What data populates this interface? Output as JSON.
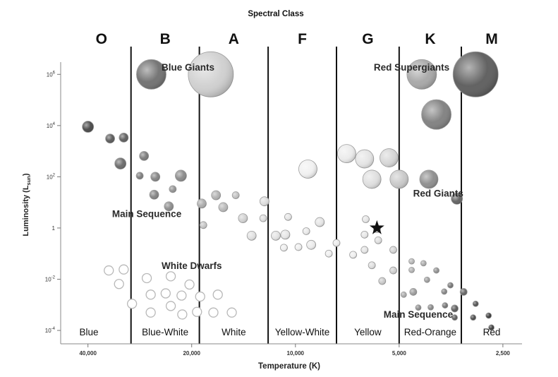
{
  "chart_data": {
    "type": "scatter",
    "title": "Spectral Class",
    "xlabel": "Temperature (K)",
    "ylabel": "Luminosity (L",
    "ylabel_sub": "sun",
    "ylabel_close": ")",
    "x_scale": "log",
    "x_reversed": true,
    "xlim": [
      48000,
      2200
    ],
    "y_scale": "log",
    "ylim": [
      3e-05,
      3000000
    ],
    "x_ticks": [
      {
        "value": 40000,
        "label": "40,000"
      },
      {
        "value": 20000,
        "label": "20,000"
      },
      {
        "value": 10000,
        "label": "10,000"
      },
      {
        "value": 5000,
        "label": "5,000"
      },
      {
        "value": 2500,
        "label": "2,500"
      }
    ],
    "y_ticks": [
      {
        "value": 1000000,
        "base": "10",
        "exp": "6"
      },
      {
        "value": 10000,
        "base": "10",
        "exp": "4"
      },
      {
        "value": 100,
        "base": "10",
        "exp": "2"
      },
      {
        "value": 1,
        "base": "1",
        "exp": ""
      },
      {
        "value": 0.01,
        "base": "10",
        "exp": "-2"
      },
      {
        "value": 0.0001,
        "base": "10",
        "exp": "-4"
      }
    ],
    "spectral_classes": [
      {
        "letter": "O",
        "color_name": "Blue",
        "t_hot": 48000,
        "t_cool": 30000
      },
      {
        "letter": "B",
        "color_name": "Blue-White",
        "t_hot": 30000,
        "t_cool": 19000
      },
      {
        "letter": "A",
        "color_name": "White",
        "t_hot": 19000,
        "t_cool": 12000
      },
      {
        "letter": "F",
        "color_name": "Yellow-White",
        "t_hot": 12000,
        "t_cool": 7600
      },
      {
        "letter": "G",
        "color_name": "Yellow",
        "t_hot": 7600,
        "t_cool": 5000
      },
      {
        "letter": "K",
        "color_name": "Red-Orange",
        "t_hot": 5000,
        "t_cool": 3300
      },
      {
        "letter": "M",
        "color_name": "Red",
        "t_hot": 3300,
        "t_cool": 2200
      }
    ],
    "region_labels": [
      {
        "text": "Blue Giants",
        "temp": 20500,
        "lum": 1400000
      },
      {
        "text": "Red Supergiants",
        "temp": 4600,
        "lum": 1400000
      },
      {
        "text": "Main Sequence",
        "temp": 27000,
        "lum": 2.7
      },
      {
        "text": "Red Giants",
        "temp": 3850,
        "lum": 17
      },
      {
        "text": "White Dwarfs",
        "temp": 20000,
        "lum": 0.025
      },
      {
        "text": "Main Sequence",
        "temp": 4400,
        "lum": 0.00031
      }
    ],
    "sun": {
      "temp": 5800,
      "lum": 1
    },
    "series": [
      {
        "group": "main_sequence",
        "points": [
          {
            "temp": 40000,
            "lum": 9000,
            "size": "s",
            "tone": "#444444"
          },
          {
            "temp": 34500,
            "lum": 3100,
            "size": "xs",
            "tone": "#555555"
          },
          {
            "temp": 31500,
            "lum": 3400,
            "size": "xs",
            "tone": "#5a5a5a"
          },
          {
            "temp": 32200,
            "lum": 330,
            "size": "s",
            "tone": "#666666"
          },
          {
            "temp": 27500,
            "lum": 650,
            "size": "xs",
            "tone": "#777777"
          },
          {
            "temp": 28300,
            "lum": 110,
            "size": "xxs",
            "tone": "#7a7a7a"
          },
          {
            "temp": 25500,
            "lum": 100,
            "size": "xs",
            "tone": "#808080"
          },
          {
            "temp": 21500,
            "lum": 110,
            "size": "s",
            "tone": "#888888"
          },
          {
            "temp": 25700,
            "lum": 20,
            "size": "xs",
            "tone": "#808080"
          },
          {
            "temp": 22700,
            "lum": 33,
            "size": "xxs",
            "tone": "#909090"
          },
          {
            "temp": 23300,
            "lum": 7,
            "size": "xs",
            "tone": "#8a8a8a"
          },
          {
            "temp": 18700,
            "lum": 9,
            "size": "xs",
            "tone": "#aaaaaa"
          },
          {
            "temp": 17000,
            "lum": 19,
            "size": "xs",
            "tone": "#b0b0b0"
          },
          {
            "temp": 16200,
            "lum": 6.5,
            "size": "xs",
            "tone": "#b8b8b8"
          },
          {
            "temp": 14900,
            "lum": 19,
            "size": "xxs",
            "tone": "#c0c0c0"
          },
          {
            "temp": 18500,
            "lum": 1.3,
            "size": "xxs",
            "tone": "#c4c4c4"
          },
          {
            "temp": 14200,
            "lum": 2.4,
            "size": "xs",
            "tone": "#d0d0d0"
          },
          {
            "temp": 12300,
            "lum": 11,
            "size": "xs",
            "tone": "#dddddd"
          },
          {
            "temp": 12400,
            "lum": 2.4,
            "size": "xxs",
            "tone": "#dddddd"
          },
          {
            "temp": 13400,
            "lum": 0.5,
            "size": "xs",
            "tone": "#e0e0e0"
          },
          {
            "temp": 11400,
            "lum": 0.5,
            "size": "xs",
            "tone": "#e2e2e2"
          },
          {
            "temp": 10500,
            "lum": 2.7,
            "size": "xxs",
            "tone": "#e4e4e4"
          },
          {
            "temp": 10700,
            "lum": 0.55,
            "size": "xs",
            "tone": "#e6e6e6"
          },
          {
            "temp": 9300,
            "lum": 0.75,
            "size": "xxs",
            "tone": "#e8e8e8"
          },
          {
            "temp": 8500,
            "lum": 1.7,
            "size": "xs",
            "tone": "#e4e4e4"
          },
          {
            "temp": 10800,
            "lum": 0.17,
            "size": "xxs",
            "tone": "#eeeeee"
          },
          {
            "temp": 9800,
            "lum": 0.18,
            "size": "xxs",
            "tone": "#eeeeee"
          },
          {
            "temp": 9000,
            "lum": 0.22,
            "size": "xs",
            "tone": "#eaeaea"
          },
          {
            "temp": 7600,
            "lum": 0.26,
            "size": "xxs",
            "tone": "#eaeaea"
          },
          {
            "temp": 8000,
            "lum": 0.1,
            "size": "xxs",
            "tone": "#eeeeee"
          },
          {
            "temp": 6800,
            "lum": 0.09,
            "size": "xxs",
            "tone": "#eeeeee"
          },
          {
            "temp": 6250,
            "lum": 2.2,
            "size": "xxs",
            "tone": "#e4e4e4"
          },
          {
            "temp": 6300,
            "lum": 0.55,
            "size": "xxs",
            "tone": "#e6e6e6"
          },
          {
            "temp": 5800,
            "lum": 0.9,
            "size": "xxs",
            "tone": "#e0e0e0"
          },
          {
            "temp": 5750,
            "lum": 0.33,
            "size": "xxs",
            "tone": "#dedede"
          },
          {
            "temp": 6300,
            "lum": 0.14,
            "size": "xxs",
            "tone": "#e4e4e4"
          },
          {
            "temp": 5200,
            "lum": 0.14,
            "size": "xxs",
            "tone": "#d2d2d2"
          },
          {
            "temp": 6000,
            "lum": 0.035,
            "size": "xxs",
            "tone": "#dddddd"
          },
          {
            "temp": 5200,
            "lum": 0.022,
            "size": "xxs",
            "tone": "#cccccc"
          },
          {
            "temp": 5600,
            "lum": 0.0085,
            "size": "xxs",
            "tone": "#c8c8c8"
          },
          {
            "temp": 4600,
            "lum": 0.05,
            "size": "xxxs",
            "tone": "#b4b4b4"
          },
          {
            "temp": 4250,
            "lum": 0.042,
            "size": "xxxs",
            "tone": "#a8a8a8"
          },
          {
            "temp": 4600,
            "lum": 0.023,
            "size": "xxxs",
            "tone": "#b0b0b0"
          },
          {
            "temp": 3900,
            "lum": 0.022,
            "size": "xxxs",
            "tone": "#8c8c8c"
          },
          {
            "temp": 4150,
            "lum": 0.0095,
            "size": "xxxs",
            "tone": "#9a9a9a"
          },
          {
            "temp": 4850,
            "lum": 0.0025,
            "size": "xxxs",
            "tone": "#a8a8a8"
          },
          {
            "temp": 4550,
            "lum": 0.0032,
            "size": "xxs",
            "tone": "#9a9a9a"
          },
          {
            "temp": 3700,
            "lum": 0.0033,
            "size": "xxxs",
            "tone": "#808080"
          },
          {
            "temp": 3550,
            "lum": 0.0058,
            "size": "xxxs",
            "tone": "#707070"
          },
          {
            "temp": 3250,
            "lum": 0.0032,
            "size": "xxs",
            "tone": "#606060"
          },
          {
            "temp": 4400,
            "lum": 0.00078,
            "size": "xxxs",
            "tone": "#888888"
          },
          {
            "temp": 4050,
            "lum": 0.0008,
            "size": "xxxs",
            "tone": "#858585"
          },
          {
            "temp": 3680,
            "lum": 0.00095,
            "size": "xxxs",
            "tone": "#6f6f6f"
          },
          {
            "temp": 3450,
            "lum": 0.00072,
            "size": "xxs",
            "tone": "#555555"
          },
          {
            "temp": 3000,
            "lum": 0.0011,
            "size": "xxxs",
            "tone": "#4a4a4a"
          },
          {
            "temp": 3050,
            "lum": 0.00032,
            "size": "xxxs",
            "tone": "#444444"
          },
          {
            "temp": 2750,
            "lum": 0.00038,
            "size": "xxxs",
            "tone": "#333333"
          },
          {
            "temp": 2700,
            "lum": 0.00013,
            "size": "xxxs",
            "tone": "#333333"
          },
          {
            "temp": 3450,
            "lum": 0.00032,
            "size": "xxxs",
            "tone": "#555555"
          }
        ]
      },
      {
        "group": "giants",
        "points": [
          {
            "temp": 26200,
            "lum": 1000000,
            "size": "L",
            "tone": "#6e6e6e"
          },
          {
            "temp": 17600,
            "lum": 1000000,
            "size": "XL",
            "tone": "#cfcfcf"
          },
          {
            "temp": 9200,
            "lum": 200,
            "size": "m",
            "tone": "#f0f0f0"
          },
          {
            "temp": 7100,
            "lum": 800,
            "size": "m",
            "tone": "#ebebeb"
          },
          {
            "temp": 6300,
            "lum": 500,
            "size": "m",
            "tone": "#e4e4e4"
          },
          {
            "temp": 5350,
            "lum": 550,
            "size": "m",
            "tone": "#d6d6d6"
          },
          {
            "temp": 6000,
            "lum": 80,
            "size": "m",
            "tone": "#dedede"
          },
          {
            "temp": 5000,
            "lum": 80,
            "size": "m",
            "tone": "#c8c8c8"
          },
          {
            "temp": 4100,
            "lum": 80,
            "size": "m",
            "tone": "#8c8c8c"
          },
          {
            "temp": 3400,
            "lum": 14,
            "size": "s",
            "tone": "#5e5e5e"
          },
          {
            "temp": 4300,
            "lum": 1000000,
            "size": "L",
            "tone": "#a6a6a6"
          },
          {
            "temp": 3900,
            "lum": 27000,
            "size": "L",
            "tone": "#7e7e7e"
          },
          {
            "temp": 3000,
            "lum": 1000000,
            "size": "XL",
            "tone": "#5a5a5a"
          }
        ]
      },
      {
        "group": "white_dwarfs",
        "points": [
          {
            "temp": 34800,
            "lum": 0.022,
            "size": "xs"
          },
          {
            "temp": 31500,
            "lum": 0.024,
            "size": "xs"
          },
          {
            "temp": 32500,
            "lum": 0.0065,
            "size": "xs"
          },
          {
            "temp": 27000,
            "lum": 0.011,
            "size": "xs"
          },
          {
            "temp": 23000,
            "lum": 0.013,
            "size": "xs"
          },
          {
            "temp": 20300,
            "lum": 0.0062,
            "size": "xs"
          },
          {
            "temp": 26300,
            "lum": 0.0025,
            "size": "xs"
          },
          {
            "temp": 23800,
            "lum": 0.0028,
            "size": "xs"
          },
          {
            "temp": 21400,
            "lum": 0.0023,
            "size": "xs"
          },
          {
            "temp": 18900,
            "lum": 0.0021,
            "size": "xs"
          },
          {
            "temp": 16800,
            "lum": 0.0025,
            "size": "xs"
          },
          {
            "temp": 29800,
            "lum": 0.0011,
            "size": "xs"
          },
          {
            "temp": 26300,
            "lum": 0.0005,
            "size": "xs"
          },
          {
            "temp": 23000,
            "lum": 0.0009,
            "size": "xs"
          },
          {
            "temp": 21300,
            "lum": 0.00042,
            "size": "xs"
          },
          {
            "temp": 19300,
            "lum": 0.00053,
            "size": "xs"
          },
          {
            "temp": 17300,
            "lum": 0.0005,
            "size": "xs"
          },
          {
            "temp": 15300,
            "lum": 0.0005,
            "size": "xs"
          }
        ]
      }
    ]
  }
}
